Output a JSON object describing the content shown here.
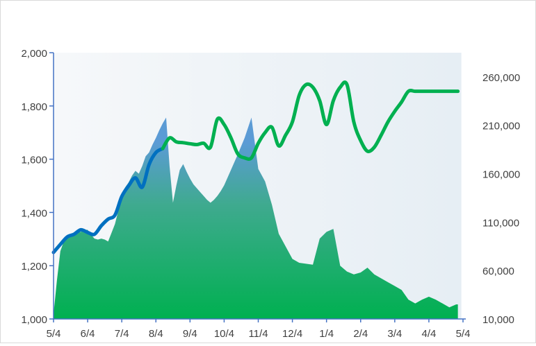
{
  "chart_data": {
    "type": "area",
    "x_tick_labels": [
      "5/4",
      "6/4",
      "7/4",
      "8/4",
      "9/4",
      "10/4",
      "11/4",
      "12/4",
      "1/4",
      "2/4",
      "3/4",
      "4/4",
      "5/4"
    ],
    "y_left": {
      "ylim": [
        1000,
        2000
      ],
      "ticks": [
        1000,
        1200,
        1400,
        1600,
        1800,
        2000
      ],
      "tick_labels": [
        "1,000",
        "1,200",
        "1,400",
        "1,600",
        "1,800",
        "2,000"
      ]
    },
    "y_right": {
      "ylim": [
        10000,
        285000
      ],
      "ticks": [
        10000,
        60000,
        110000,
        160000,
        210000,
        260000
      ],
      "tick_labels": [
        "10,000",
        "60,000",
        "110,000",
        "160,000",
        "210,000",
        "260,000"
      ]
    },
    "grid": false,
    "legend": "none",
    "series": [
      {
        "kind": "area",
        "axis": "right",
        "x": [
          0,
          0.1,
          0.2,
          0.3,
          0.4,
          0.5,
          0.6,
          0.7,
          0.8,
          0.9,
          1.0,
          1.1,
          1.2,
          1.3,
          1.4,
          1.5,
          1.6,
          1.7,
          1.8,
          1.9,
          2.0,
          2.1,
          2.2,
          2.3,
          2.4,
          2.5,
          2.6,
          2.7,
          2.8,
          2.9,
          3.0,
          3.1,
          3.2,
          3.3,
          3.4,
          3.5,
          3.6,
          3.7,
          3.8,
          3.9,
          4.0,
          4.1,
          4.2,
          4.3,
          4.4,
          4.5,
          4.6,
          4.7,
          4.8,
          4.9,
          5.0,
          5.2,
          5.4,
          5.6,
          5.8,
          6.0,
          6.2,
          6.4,
          6.6,
          6.8,
          7.0,
          7.2,
          7.4,
          7.6,
          7.8,
          8.0,
          8.2,
          8.4,
          8.6,
          8.8,
          9.0,
          9.2,
          9.4,
          9.6,
          9.8,
          10.0,
          10.2,
          10.4,
          10.6,
          10.8,
          11.0,
          11.2,
          11.4,
          11.6,
          11.8,
          11.85
        ],
        "values": [
          15000,
          50000,
          80000,
          90000,
          95000,
          98000,
          98000,
          99000,
          100000,
          102000,
          102000,
          97000,
          93000,
          92000,
          93000,
          92000,
          90000,
          99000,
          108000,
          122000,
          140000,
          146000,
          151000,
          158000,
          163000,
          160000,
          168000,
          178000,
          182000,
          190000,
          197000,
          205000,
          212000,
          218000,
          168000,
          130000,
          148000,
          164000,
          170000,
          162000,
          155000,
          149000,
          145000,
          141000,
          137000,
          133000,
          130000,
          133000,
          137000,
          142000,
          148000,
          164000,
          180000,
          197000,
          218000,
          165000,
          152000,
          128000,
          98000,
          85000,
          72000,
          68000,
          67000,
          66000,
          93000,
          100000,
          103000,
          65000,
          59000,
          56000,
          58000,
          63000,
          56000,
          52000,
          48000,
          44000,
          40000,
          30000,
          26000,
          30000,
          33000,
          30000,
          26000,
          22000,
          25000,
          25000
        ]
      },
      {
        "kind": "line",
        "axis": "left",
        "color": "#0070C0",
        "x": [
          0,
          0.2,
          0.4,
          0.6,
          0.8,
          1.0,
          1.2,
          1.4,
          1.6,
          1.8,
          2.0,
          2.2,
          2.4,
          2.6,
          2.8,
          3.0,
          3.2
        ],
        "values": [
          1250,
          1280,
          1308,
          1318,
          1335,
          1325,
          1318,
          1350,
          1375,
          1390,
          1460,
          1500,
          1530,
          1495,
          1580,
          1625,
          1640
        ]
      },
      {
        "kind": "line",
        "axis": "left",
        "color": "#00B050",
        "x": [
          3.2,
          3.4,
          3.6,
          3.8,
          4.0,
          4.2,
          4.4,
          4.6,
          4.8,
          5.0,
          5.2,
          5.4,
          5.6,
          5.8,
          6.0,
          6.2,
          6.4,
          6.6,
          6.8,
          7.0,
          7.2,
          7.4,
          7.6,
          7.8,
          8.0,
          8.2,
          8.4,
          8.6,
          8.8,
          9.0,
          9.2,
          9.4,
          9.6,
          9.8,
          10.0,
          10.2,
          10.4,
          10.6,
          10.8,
          11.0,
          11.2,
          11.4,
          11.6,
          11.8,
          11.85
        ],
        "values": [
          1640,
          1680,
          1665,
          1662,
          1658,
          1655,
          1660,
          1645,
          1750,
          1730,
          1680,
          1620,
          1605,
          1605,
          1660,
          1700,
          1720,
          1650,
          1690,
          1740,
          1840,
          1880,
          1870,
          1820,
          1730,
          1820,
          1870,
          1880,
          1740,
          1670,
          1630,
          1645,
          1690,
          1740,
          1780,
          1815,
          1855,
          1855,
          1855,
          1855,
          1855,
          1855,
          1855,
          1855,
          1855
        ]
      }
    ]
  }
}
